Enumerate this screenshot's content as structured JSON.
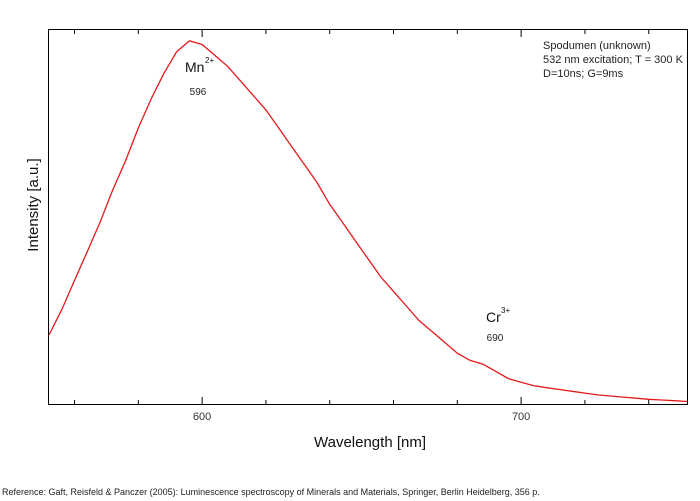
{
  "colors": {
    "series": "#e31a1c",
    "axis": "#000000"
  },
  "info_box": [
    "Spodumen (unknown)",
    "532 nm excitation; T = 300 K",
    "D=10ns; G=9ms"
  ],
  "reference": "Reference: Gaft, Reisfeld & Panczer (2005): Luminescence spectroscopy of Minerals and Materials, Springer, Berlin Heidelberg, 356 p.",
  "chart_data": {
    "type": "line",
    "title": "",
    "xlabel": "Wavelength [nm]",
    "ylabel": "Intensity [a.u.]",
    "xlim": [
      552,
      752
    ],
    "ylim": [
      0,
      1.03
    ],
    "x_ticks_major": [
      600,
      700
    ],
    "x_ticks_minor": [
      560,
      580,
      620,
      640,
      660,
      680,
      720,
      740
    ],
    "grid": false,
    "legend": "none",
    "series": [
      {
        "x": [
          552,
          556,
          560,
          564,
          568,
          572,
          576,
          580,
          584,
          588,
          592,
          596,
          600,
          604,
          608,
          612,
          616,
          620,
          624,
          628,
          632,
          636,
          640,
          644,
          648,
          652,
          656,
          660,
          664,
          668,
          672,
          676,
          680,
          684,
          688,
          690,
          692,
          696,
          700,
          704,
          708,
          712,
          716,
          720,
          724,
          728,
          732,
          736,
          740,
          744,
          748,
          752
        ],
        "y": [
          0.19,
          0.26,
          0.34,
          0.42,
          0.5,
          0.59,
          0.67,
          0.76,
          0.84,
          0.91,
          0.97,
          1.0,
          0.99,
          0.96,
          0.93,
          0.89,
          0.85,
          0.81,
          0.76,
          0.71,
          0.66,
          0.61,
          0.55,
          0.5,
          0.45,
          0.4,
          0.35,
          0.31,
          0.27,
          0.23,
          0.2,
          0.17,
          0.14,
          0.12,
          0.11,
          0.1,
          0.09,
          0.07,
          0.06,
          0.05,
          0.045,
          0.04,
          0.035,
          0.03,
          0.025,
          0.022,
          0.019,
          0.016,
          0.013,
          0.011,
          0.009,
          0.007
        ]
      }
    ],
    "annotations": [
      {
        "ion": "Mn",
        "charge": "2+",
        "wavelength_label": "596",
        "x": 596
      },
      {
        "ion": "Cr",
        "charge": "3+",
        "wavelength_label": "690",
        "x": 690
      }
    ]
  }
}
